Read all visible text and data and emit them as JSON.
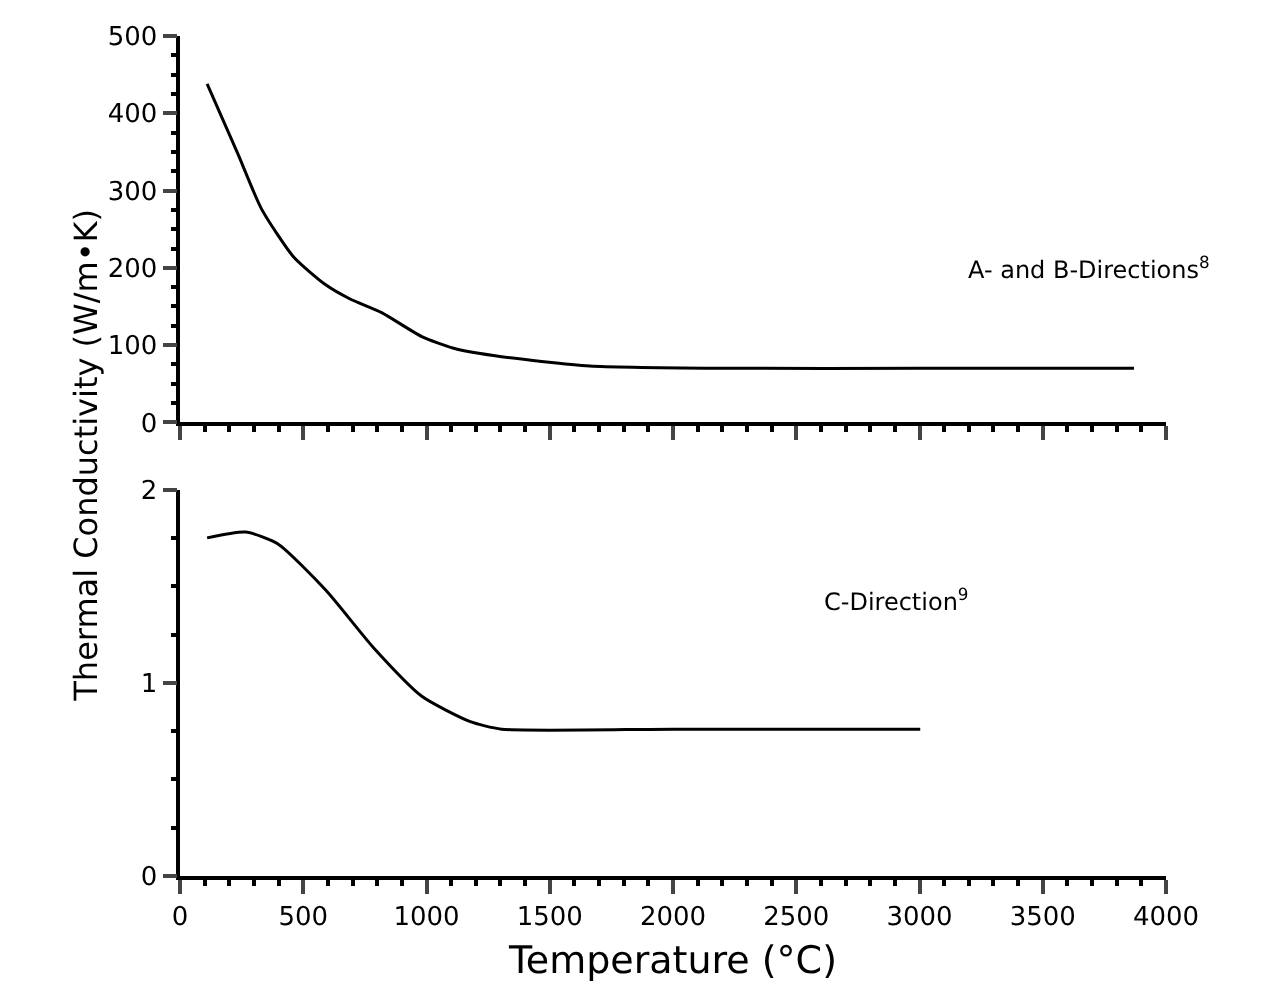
{
  "chart_data": [
    {
      "type": "line",
      "ylabel": "Thermal Conductivity (W/m•K)",
      "xlim": [
        0,
        4000
      ],
      "xticks": [
        0,
        500,
        1000,
        1500,
        2000,
        2500,
        3000,
        3500,
        4000
      ],
      "ylim": [
        0,
        500
      ],
      "yticks": [
        0,
        100,
        200,
        300,
        400,
        500
      ],
      "tick_labels": "y",
      "x": [
        110,
        234,
        331,
        461,
        591,
        688,
        818,
        981,
        1110,
        1305,
        1662,
        2214,
        3000,
        3870
      ],
      "series": [
        {
          "name": "A- and B-Directions$^{8}$",
          "color": "#000000",
          "values": [
            438,
            348,
            276,
            214,
            178,
            160,
            142,
            111,
            96,
            85,
            73,
            70,
            70,
            70
          ]
        }
      ]
    },
    {
      "type": "line",
      "xlabel": "Temperature (°C)",
      "xlim": [
        0,
        4000
      ],
      "xticks": [
        0,
        500,
        1000,
        1500,
        2000,
        2500,
        3000,
        3500,
        4000
      ],
      "ylim": [
        0,
        2
      ],
      "yticks": [
        0,
        1,
        2
      ],
      "x": [
        110,
        266,
        396,
        591,
        786,
        981,
        1175,
        1305,
        2000,
        3003
      ],
      "series": [
        {
          "name": "C-Direction$^{9}$",
          "color": "#000000",
          "values": [
            1.75,
            1.78,
            1.72,
            1.48,
            1.18,
            0.93,
            0.8,
            0.76,
            0.76,
            0.76
          ]
        }
      ]
    }
  ]
}
